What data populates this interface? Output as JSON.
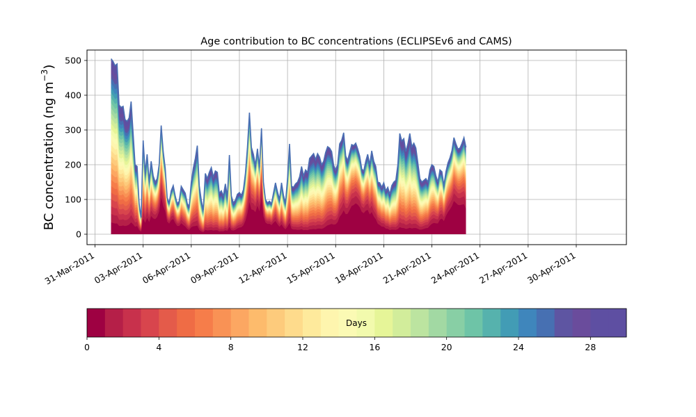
{
  "chart_data": {
    "type": "area",
    "stacked": true,
    "title": "Age contribution to BC concentrations (ECLIPSEv6 and CAMS)",
    "ylabel": "BC concentration (ng m⁻³)",
    "xlabel": "",
    "x_axis": "date",
    "xlim": [
      "2011-03-30T12:00",
      "2011-05-03T03:00"
    ],
    "ylim": [
      -30,
      530
    ],
    "x_ticks": [
      "31-Mar-2011",
      "03-Apr-2011",
      "06-Apr-2011",
      "09-Apr-2011",
      "12-Apr-2011",
      "15-Apr-2011",
      "18-Apr-2011",
      "21-Apr-2011",
      "24-Apr-2011",
      "27-Apr-2011",
      "30-Apr-2011"
    ],
    "y_ticks": [
      0,
      100,
      200,
      300,
      400,
      500
    ],
    "grid": true,
    "series_description": "stacked contributions by age in days (0-30), colored by colorbar",
    "total": [
      [
        "2011-04-01T00:00",
        505
      ],
      [
        "2011-04-01T03:00",
        497
      ],
      [
        "2011-04-01T06:00",
        485
      ],
      [
        "2011-04-01T09:00",
        490
      ],
      [
        "2011-04-01T12:00",
        372
      ],
      [
        "2011-04-01T15:00",
        365
      ],
      [
        "2011-04-01T18:00",
        368
      ],
      [
        "2011-04-01T21:00",
        330
      ],
      [
        "2011-04-02T00:00",
        325
      ],
      [
        "2011-04-02T03:00",
        335
      ],
      [
        "2011-04-02T06:00",
        382
      ],
      [
        "2011-04-02T09:00",
        290
      ],
      [
        "2011-04-02T12:00",
        200
      ],
      [
        "2011-04-02T15:00",
        195
      ],
      [
        "2011-04-02T18:00",
        88
      ],
      [
        "2011-04-02T21:00",
        48
      ],
      [
        "2011-04-03T00:00",
        270
      ],
      [
        "2011-04-03T03:00",
        178
      ],
      [
        "2011-04-03T06:00",
        230
      ],
      [
        "2011-04-03T09:00",
        152
      ],
      [
        "2011-04-03T12:00",
        210
      ],
      [
        "2011-04-03T15:00",
        168
      ],
      [
        "2011-04-03T18:00",
        150
      ],
      [
        "2011-04-03T21:00",
        160
      ],
      [
        "2011-04-04T00:00",
        200
      ],
      [
        "2011-04-04T03:00",
        313
      ],
      [
        "2011-04-04T06:00",
        238
      ],
      [
        "2011-04-04T09:00",
        190
      ],
      [
        "2011-04-04T12:00",
        105
      ],
      [
        "2011-04-04T15:00",
        90
      ],
      [
        "2011-04-04T18:00",
        125
      ],
      [
        "2011-04-04T21:00",
        140
      ],
      [
        "2011-04-05T00:00",
        110
      ],
      [
        "2011-04-05T03:00",
        88
      ],
      [
        "2011-04-05T06:00",
        95
      ],
      [
        "2011-04-05T09:00",
        138
      ],
      [
        "2011-04-05T12:00",
        128
      ],
      [
        "2011-04-05T15:00",
        118
      ],
      [
        "2011-04-05T18:00",
        88
      ],
      [
        "2011-04-05T21:00",
        80
      ],
      [
        "2011-04-06T00:00",
        150
      ],
      [
        "2011-04-06T03:00",
        190
      ],
      [
        "2011-04-06T06:00",
        218
      ],
      [
        "2011-04-06T09:00",
        255
      ],
      [
        "2011-04-06T12:00",
        140
      ],
      [
        "2011-04-06T15:00",
        98
      ],
      [
        "2011-04-06T18:00",
        70
      ],
      [
        "2011-04-06T21:00",
        175
      ],
      [
        "2011-04-07T00:00",
        160
      ],
      [
        "2011-04-07T03:00",
        178
      ],
      [
        "2011-04-07T06:00",
        192
      ],
      [
        "2011-04-07T09:00",
        165
      ],
      [
        "2011-04-07T12:00",
        182
      ],
      [
        "2011-04-07T15:00",
        178
      ],
      [
        "2011-04-07T18:00",
        118
      ],
      [
        "2011-04-07T21:00",
        125
      ],
      [
        "2011-04-08T00:00",
        110
      ],
      [
        "2011-04-08T03:00",
        145
      ],
      [
        "2011-04-08T06:00",
        108
      ],
      [
        "2011-04-08T09:00",
        228
      ],
      [
        "2011-04-08T12:00",
        110
      ],
      [
        "2011-04-08T15:00",
        90
      ],
      [
        "2011-04-08T18:00",
        98
      ],
      [
        "2011-04-08T21:00",
        115
      ],
      [
        "2011-04-09T00:00",
        120
      ],
      [
        "2011-04-09T03:00",
        112
      ],
      [
        "2011-04-09T06:00",
        128
      ],
      [
        "2011-04-09T09:00",
        175
      ],
      [
        "2011-04-09T12:00",
        250
      ],
      [
        "2011-04-09T15:00",
        350
      ],
      [
        "2011-04-09T18:00",
        250
      ],
      [
        "2011-04-09T21:00",
        230
      ],
      [
        "2011-04-10T00:00",
        198
      ],
      [
        "2011-04-10T03:00",
        246
      ],
      [
        "2011-04-10T06:00",
        192
      ],
      [
        "2011-04-10T09:00",
        305
      ],
      [
        "2011-04-10T12:00",
        150
      ],
      [
        "2011-04-10T15:00",
        100
      ],
      [
        "2011-04-10T18:00",
        90
      ],
      [
        "2011-04-10T21:00",
        95
      ],
      [
        "2011-04-11T00:00",
        88
      ],
      [
        "2011-04-11T03:00",
        118
      ],
      [
        "2011-04-11T06:00",
        148
      ],
      [
        "2011-04-11T09:00",
        122
      ],
      [
        "2011-04-11T12:00",
        100
      ],
      [
        "2011-04-11T15:00",
        148
      ],
      [
        "2011-04-11T18:00",
        112
      ],
      [
        "2011-04-11T21:00",
        90
      ],
      [
        "2011-04-12T00:00",
        160
      ],
      [
        "2011-04-12T03:00",
        260
      ],
      [
        "2011-04-12T06:00",
        138
      ],
      [
        "2011-04-12T09:00",
        135
      ],
      [
        "2011-04-12T12:00",
        145
      ],
      [
        "2011-04-12T15:00",
        150
      ],
      [
        "2011-04-12T18:00",
        165
      ],
      [
        "2011-04-12T21:00",
        195
      ],
      [
        "2011-04-13T00:00",
        168
      ],
      [
        "2011-04-13T03:00",
        185
      ],
      [
        "2011-04-13T06:00",
        178
      ],
      [
        "2011-04-13T09:00",
        218
      ],
      [
        "2011-04-13T12:00",
        225
      ],
      [
        "2011-04-13T15:00",
        232
      ],
      [
        "2011-04-13T18:00",
        215
      ],
      [
        "2011-04-13T21:00",
        232
      ],
      [
        "2011-04-14T00:00",
        222
      ],
      [
        "2011-04-14T03:00",
        200
      ],
      [
        "2011-04-14T06:00",
        210
      ],
      [
        "2011-04-14T09:00",
        235
      ],
      [
        "2011-04-14T12:00",
        252
      ],
      [
        "2011-04-14T15:00",
        248
      ],
      [
        "2011-04-14T18:00",
        238
      ],
      [
        "2011-04-14T21:00",
        198
      ],
      [
        "2011-04-15T00:00",
        185
      ],
      [
        "2011-04-15T03:00",
        200
      ],
      [
        "2011-04-15T06:00",
        260
      ],
      [
        "2011-04-15T09:00",
        270
      ],
      [
        "2011-04-15T12:00",
        292
      ],
      [
        "2011-04-15T15:00",
        225
      ],
      [
        "2011-04-15T18:00",
        212
      ],
      [
        "2011-04-15T21:00",
        235
      ],
      [
        "2011-04-16T00:00",
        258
      ],
      [
        "2011-04-16T03:00",
        255
      ],
      [
        "2011-04-16T06:00",
        262
      ],
      [
        "2011-04-16T09:00",
        246
      ],
      [
        "2011-04-16T12:00",
        225
      ],
      [
        "2011-04-16T15:00",
        188
      ],
      [
        "2011-04-16T18:00",
        182
      ],
      [
        "2011-04-16T21:00",
        210
      ],
      [
        "2011-04-17T00:00",
        230
      ],
      [
        "2011-04-17T03:00",
        200
      ],
      [
        "2011-04-17T06:00",
        240
      ],
      [
        "2011-04-17T09:00",
        210
      ],
      [
        "2011-04-17T12:00",
        195
      ],
      [
        "2011-04-17T15:00",
        150
      ],
      [
        "2011-04-17T18:00",
        148
      ],
      [
        "2011-04-17T21:00",
        135
      ],
      [
        "2011-04-18T00:00",
        148
      ],
      [
        "2011-04-18T03:00",
        125
      ],
      [
        "2011-04-18T06:00",
        135
      ],
      [
        "2011-04-18T09:00",
        115
      ],
      [
        "2011-04-18T12:00",
        140
      ],
      [
        "2011-04-18T15:00",
        150
      ],
      [
        "2011-04-18T18:00",
        155
      ],
      [
        "2011-04-18T21:00",
        200
      ],
      [
        "2011-04-19T00:00",
        290
      ],
      [
        "2011-04-19T03:00",
        268
      ],
      [
        "2011-04-19T06:00",
        275
      ],
      [
        "2011-04-19T09:00",
        238
      ],
      [
        "2011-04-19T12:00",
        260
      ],
      [
        "2011-04-19T15:00",
        290
      ],
      [
        "2011-04-19T18:00",
        252
      ],
      [
        "2011-04-19T21:00",
        262
      ],
      [
        "2011-04-20T00:00",
        248
      ],
      [
        "2011-04-20T03:00",
        205
      ],
      [
        "2011-04-20T06:00",
        160
      ],
      [
        "2011-04-20T09:00",
        150
      ],
      [
        "2011-04-20T12:00",
        155
      ],
      [
        "2011-04-20T15:00",
        160
      ],
      [
        "2011-04-20T18:00",
        150
      ],
      [
        "2011-04-20T21:00",
        185
      ],
      [
        "2011-04-21T00:00",
        200
      ],
      [
        "2011-04-21T03:00",
        195
      ],
      [
        "2011-04-21T06:00",
        168
      ],
      [
        "2011-04-21T09:00",
        150
      ],
      [
        "2011-04-21T12:00",
        185
      ],
      [
        "2011-04-21T15:00",
        180
      ],
      [
        "2011-04-21T18:00",
        140
      ],
      [
        "2011-04-21T21:00",
        180
      ],
      [
        "2011-04-22T00:00",
        205
      ],
      [
        "2011-04-22T03:00",
        220
      ],
      [
        "2011-04-22T06:00",
        240
      ],
      [
        "2011-04-22T09:00",
        278
      ],
      [
        "2011-04-22T12:00",
        260
      ],
      [
        "2011-04-22T15:00",
        245
      ],
      [
        "2011-04-22T18:00",
        248
      ],
      [
        "2011-04-22T21:00",
        262
      ],
      [
        "2011-04-23T00:00",
        278
      ],
      [
        "2011-04-23T03:00",
        250
      ]
    ]
  },
  "colorbar": {
    "label": "Days",
    "min": 0,
    "max": 30,
    "ticks": [
      0,
      4,
      8,
      12,
      16,
      20,
      24,
      28
    ],
    "colors": [
      "#9e0142",
      "#b51f48",
      "#c8314c",
      "#d8454d",
      "#e45b4a",
      "#ef6c45",
      "#f67d4a",
      "#f99255",
      "#fca762",
      "#fdbb6c",
      "#fdcb7c",
      "#fedb8c",
      "#feea9c",
      "#fef5ae",
      "#fbfab4",
      "#f2faad",
      "#e6f598",
      "#d2ed9b",
      "#bce4a0",
      "#a2d9a3",
      "#88cfa5",
      "#6ec4a7",
      "#56b2ad",
      "#429cb5",
      "#3f86bc",
      "#4770b2",
      "#5e55a2",
      "#6a4c9c",
      "#5e4fa2",
      "#5e4fa2"
    ]
  }
}
